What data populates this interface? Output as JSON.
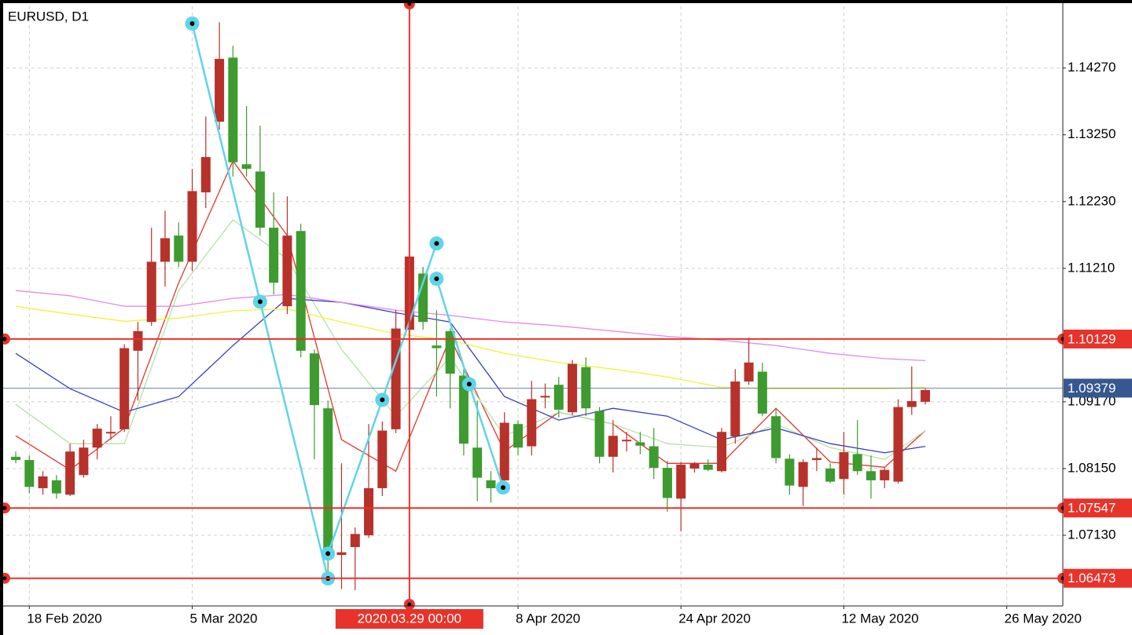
{
  "chart_data": {
    "type": "candlestick",
    "title": "EURUSD, D1",
    "open": [
      1.0833,
      1.0828,
      1.0785,
      1.0797,
      1.0775,
      1.0805,
      1.0847,
      1.0869,
      1.0875,
      1.0995,
      1.1039,
      1.1131,
      1.1171,
      1.1131,
      1.1237,
      1.1345,
      1.1443,
      1.128,
      1.1269,
      1.1183,
      1.1063,
      1.1178,
      1.0991,
      1.0907,
      1.0683,
      1.0695,
      1.0713,
      1.0785,
      1.0875,
      1.1027,
      1.1113,
      1.1003,
      1.1025,
      1.0957,
      1.0847,
      1.0797,
      1.0797,
      1.0883,
      1.0849,
      1.0924,
      1.0943,
      1.0901,
      1.097,
      1.0903,
      1.0833,
      1.0857,
      1.0855,
      1.0849,
      1.0816,
      1.0769,
      1.0815,
      1.0821,
      1.0811,
      1.0864,
      1.0948,
      1.0963,
      1.0895,
      1.083,
      1.0787,
      1.0828,
      1.0815,
      1.0799,
      1.0837,
      1.0811,
      1.0797,
      1.0795,
      1.0909,
      1.0917
    ],
    "high": [
      1.0841,
      1.0835,
      1.0811,
      1.0805,
      1.0853,
      1.0859,
      1.0883,
      1.0895,
      1.1005,
      1.1039,
      1.1183,
      1.1209,
      1.1191,
      1.1273,
      1.1353,
      1.1497,
      1.1461,
      1.1369,
      1.1339,
      1.1237,
      1.1231,
      1.1189,
      1.0997,
      1.0919,
      1.0823,
      1.0725,
      1.0883,
      1.0887,
      1.1057,
      1.1147,
      1.1123,
      1.1057,
      1.1029,
      1.0967,
      1.0919,
      1.0811,
      1.0901,
      1.0889,
      1.0949,
      1.0945,
      1.0955,
      1.0981,
      1.0985,
      1.0909,
      1.0889,
      1.0871,
      1.0871,
      1.0877,
      1.0827,
      1.0825,
      1.0825,
      1.0829,
      1.0877,
      1.0967,
      1.1015,
      1.0977,
      1.0907,
      1.0837,
      1.0829,
      1.0847,
      1.0823,
      1.0871,
      1.0889,
      1.0835,
      1.0817,
      1.0921,
      1.0971,
      1.0937
    ],
    "low": [
      1.0823,
      1.0777,
      1.0775,
      1.0769,
      1.0773,
      1.0801,
      1.0829,
      1.0859,
      1.0871,
      1.0919,
      1.1033,
      1.1093,
      1.1123,
      1.1117,
      1.1213,
      1.1333,
      1.1261,
      1.1261,
      1.1171,
      1.1081,
      1.1051,
      1.0985,
      1.0829,
      1.0649,
      1.0631,
      1.0629,
      1.0709,
      1.0773,
      1.0869,
      1.1021,
      1.1027,
      1.0925,
      1.0907,
      1.0835,
      1.0765,
      1.0763,
      1.0789,
      1.0835,
      1.0835,
      1.0907,
      1.0893,
      1.0897,
      1.0895,
      1.0823,
      1.0809,
      1.0841,
      1.0837,
      1.0799,
      1.0749,
      1.0719,
      1.0809,
      1.0811,
      1.0809,
      1.0853,
      1.0943,
      1.0895,
      1.0823,
      1.0775,
      1.0758,
      1.0811,
      1.0793,
      1.0775,
      1.0805,
      1.0769,
      1.0785,
      1.0792,
      1.0897,
      1.0913
    ],
    "close": [
      1.0828,
      1.0787,
      1.0803,
      1.0777,
      1.0841,
      1.0847,
      1.0876,
      1.0871,
      1.0999,
      1.1025,
      1.1131,
      1.1167,
      1.1131,
      1.1239,
      1.1291,
      1.1441,
      1.1283,
      1.1273,
      1.1183,
      1.1099,
      1.1171,
      1.0995,
      1.0912,
      1.0685,
      1.0687,
      1.0715,
      1.0785,
      1.0873,
      1.1029,
      1.1139,
      1.1039,
      1.0999,
      1.096,
      1.0853,
      1.0801,
      1.0785,
      1.0885,
      1.0847,
      1.0921,
      1.0926,
      1.0905,
      1.0975,
      1.0907,
      1.0833,
      1.0865,
      1.0859,
      1.085,
      1.0816,
      1.077,
      1.0821,
      1.0823,
      1.0813,
      1.0871,
      1.0948,
      1.0977,
      1.0899,
      1.0831,
      1.0789,
      1.0825,
      1.0831,
      1.0795,
      1.084,
      1.0811,
      1.0797,
      1.0813,
      1.0909,
      1.0918,
      1.0935
    ],
    "up_color": "#b7322a",
    "down_color": "#3d9b2f",
    "xlim": [
      -1.16,
      77.13
    ],
    "ylim": [
      1.0605,
      1.1531
    ],
    "xticks": [
      {
        "value": 1,
        "label": "18 Feb 2020"
      },
      {
        "value": 13,
        "label": "5 Mar 2020"
      },
      {
        "value": 37,
        "label": "8 Apr 2020"
      },
      {
        "value": 49,
        "label": "24 Apr 2020"
      },
      {
        "value": 61,
        "label": "12 May 2020"
      },
      {
        "value": 73,
        "label": "26 May 2020"
      }
    ],
    "yticks": [
      {
        "value": 1.1427,
        "label": "1.14270"
      },
      {
        "value": 1.1325,
        "label": "1.13250"
      },
      {
        "value": 1.1223,
        "label": "1.12230"
      },
      {
        "value": 1.1121,
        "label": "1.11210"
      },
      {
        "value": 1.0917,
        "label": "1.09170"
      },
      {
        "value": 1.0815,
        "label": "1.08150"
      },
      {
        "value": 1.0713,
        "label": "1.07130"
      }
    ],
    "grid": true,
    "series": [
      {
        "color": "#e0382e",
        "x": [
          0,
          4,
          8,
          12,
          16,
          20,
          24,
          28,
          32,
          36,
          40,
          44,
          48,
          52,
          56,
          60,
          64,
          67
        ],
        "values": [
          1.0865,
          1.0813,
          1.0877,
          1.1099,
          1.1285,
          1.1171,
          1.0859,
          1.0811,
          1.1015,
          1.0841,
          1.0901,
          1.0883,
          1.0823,
          1.0823,
          1.0907,
          1.0825,
          1.0817,
          1.0873
        ]
      },
      {
        "color": "#b4e3a4",
        "x": [
          0,
          4,
          8,
          12,
          16,
          20,
          24,
          28,
          32,
          36,
          40,
          44,
          48,
          52,
          56,
          60,
          64,
          67
        ],
        "values": [
          1.0913,
          1.0853,
          1.0853,
          1.1087,
          1.1195,
          1.1135,
          1.0997,
          1.0895,
          1.0985,
          1.0865,
          1.0901,
          1.0883,
          1.0853,
          1.0847,
          1.0883,
          1.0847,
          1.0829,
          1.0873
        ]
      },
      {
        "color": "#3a3fc0",
        "x": [
          0,
          4,
          8,
          12,
          16,
          20,
          24,
          28,
          32,
          36,
          40,
          44,
          48,
          52,
          56,
          60,
          64,
          67
        ],
        "values": [
          1.0991,
          1.0937,
          1.0901,
          1.0925,
          1.1003,
          1.1075,
          1.1069,
          1.1053,
          1.1039,
          1.0925,
          1.0889,
          1.0907,
          1.0895,
          1.0859,
          1.0877,
          1.0853,
          1.0839,
          1.0849
        ]
      },
      {
        "color": "#f2f23a",
        "x": [
          0,
          4,
          8,
          12,
          16,
          20,
          24,
          28,
          32,
          36,
          40,
          44,
          48,
          52,
          56,
          60,
          64,
          67
        ],
        "values": [
          1.1063,
          1.1051,
          1.104,
          1.1045,
          1.1056,
          1.1059,
          1.1039,
          1.1021,
          1.1011,
          1.0991,
          1.0977,
          1.0967,
          1.0955,
          1.0939,
          1.0937,
          1.0937,
          1.0937,
          1.0939
        ]
      },
      {
        "color": "#e58be8",
        "x": [
          0,
          4,
          8,
          12,
          16,
          20,
          24,
          28,
          32,
          36,
          40,
          44,
          48,
          52,
          56,
          60,
          64,
          67
        ],
        "values": [
          1.1087,
          1.1079,
          1.1063,
          1.1063,
          1.1075,
          1.1081,
          1.1069,
          1.1057,
          1.1049,
          1.1039,
          1.1033,
          1.1025,
          1.1017,
          1.1011,
          1.1003,
          1.0991,
          1.0983,
          1.098
        ]
      }
    ],
    "drawings": [
      {
        "color": "#5fd4e8",
        "x": [
          13,
          18,
          23
        ],
        "values": [
          1.1495,
          1.107,
          1.0647
        ]
      },
      {
        "color": "#5fd4e8",
        "x": [
          23,
          27,
          31
        ],
        "values": [
          1.0685,
          1.092,
          1.1159
        ]
      },
      {
        "color": "#5fd4e8",
        "x": [
          31,
          33.4,
          35.9
        ],
        "values": [
          1.1105,
          1.0944,
          1.0786
        ]
      }
    ],
    "levels": [
      {
        "value": 1.10129,
        "color": "#e8332a"
      },
      {
        "value": 1.07547,
        "color": "#e8332a"
      },
      {
        "value": 1.06473,
        "color": "#e8332a"
      }
    ],
    "current_price": {
      "value": 1.09379,
      "color": "#36578f"
    },
    "crosshair": {
      "x": 29,
      "label": "2020.03.29 00:00",
      "color": "#e8332a"
    }
  }
}
